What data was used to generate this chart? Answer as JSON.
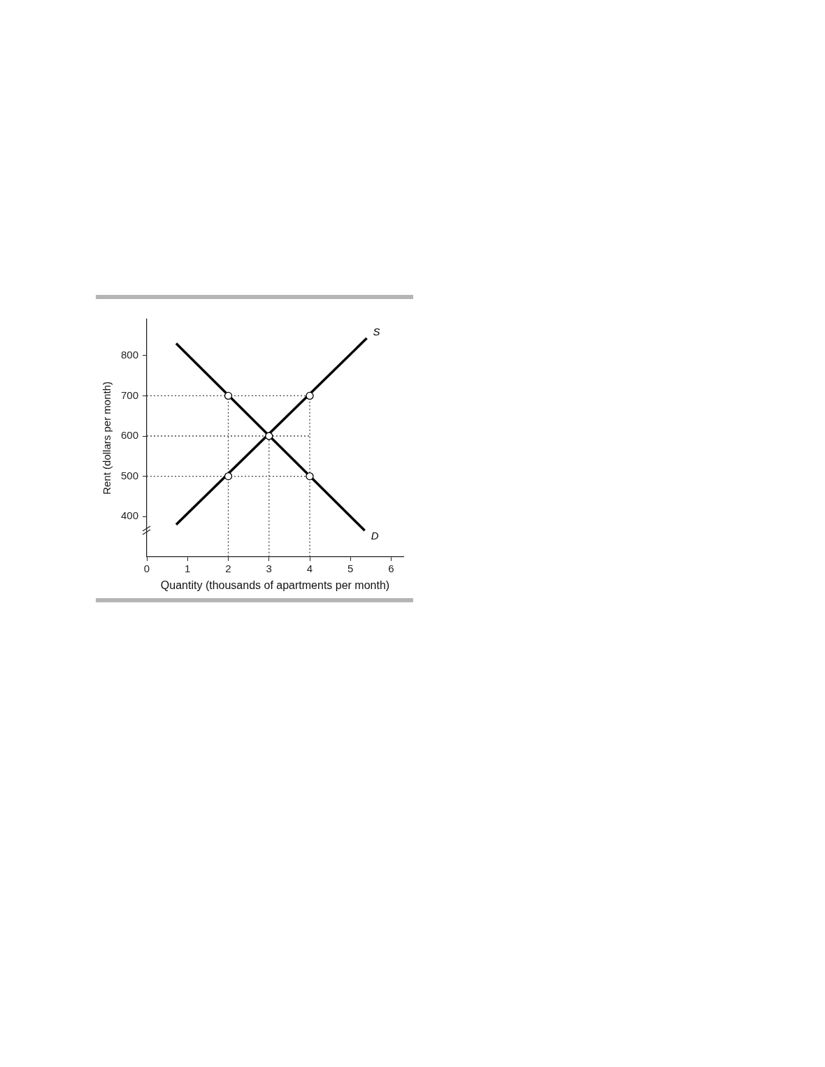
{
  "chart_data": {
    "type": "line",
    "xlabel": "Quantity (thousands of apartments per month)",
    "ylabel": "Rent (dollars per month)",
    "xlim": [
      0,
      6.3
    ],
    "xticks": [
      0,
      1,
      2,
      3,
      4,
      5,
      6
    ],
    "ylim": [
      300,
      890
    ],
    "yticks": [
      400,
      500,
      600,
      700,
      800
    ],
    "grid": false,
    "legend": false,
    "series": [
      {
        "name": "D",
        "type": "line",
        "color": "#000000",
        "line_style": "solid",
        "marker": "none",
        "x": [
          0.72,
          5.35
        ],
        "values": [
          830,
          365
        ]
      },
      {
        "name": "S",
        "type": "line",
        "color": "#000000",
        "line_style": "solid",
        "marker": "none",
        "x": [
          0.72,
          5.4
        ],
        "values": [
          380,
          843
        ]
      },
      {
        "type": "line",
        "color": "#444444",
        "line_style": "dotted",
        "marker": "none",
        "x": [
          0,
          4
        ],
        "values": [
          700,
          700
        ]
      },
      {
        "type": "line",
        "color": "#444444",
        "line_style": "dotted",
        "marker": "none",
        "x": [
          0,
          4
        ],
        "values": [
          600,
          600
        ]
      },
      {
        "type": "line",
        "color": "#444444",
        "line_style": "dotted",
        "marker": "none",
        "x": [
          0,
          4
        ],
        "values": [
          500,
          500
        ]
      },
      {
        "type": "line",
        "color": "#444444",
        "line_style": "dotted",
        "marker": "none",
        "x": [
          2,
          2
        ],
        "values": [
          300,
          700
        ]
      },
      {
        "type": "line",
        "color": "#444444",
        "line_style": "dotted",
        "marker": "none",
        "x": [
          3,
          3
        ],
        "values": [
          300,
          600
        ]
      },
      {
        "type": "line",
        "color": "#444444",
        "line_style": "dotted",
        "marker": "none",
        "x": [
          4,
          4
        ],
        "values": [
          300,
          700
        ]
      },
      {
        "type": "scatter",
        "color": "#ffffff",
        "marker": "circle",
        "x": [
          2,
          4,
          3,
          2,
          4
        ],
        "values": [
          700,
          700,
          600,
          500,
          500
        ]
      }
    ]
  }
}
